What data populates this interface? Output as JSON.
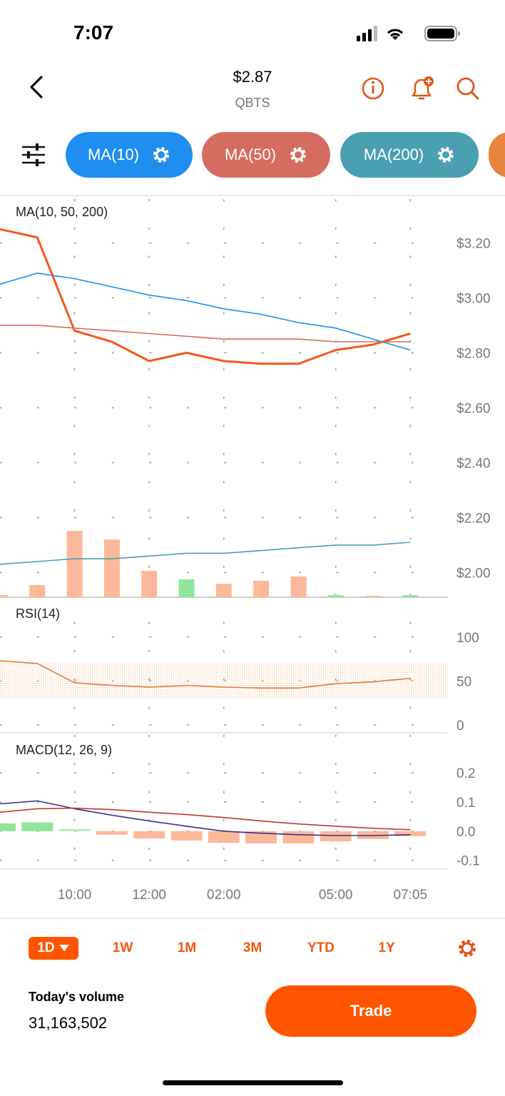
{
  "status_bar": {
    "time": "7:07"
  },
  "header": {
    "price": "$2.87",
    "symbol": "QBTS"
  },
  "time_axis": {
    "categories": [
      null,
      null,
      "10:00",
      null,
      "12:00",
      null,
      "02:00",
      null,
      null,
      "05:00",
      null,
      "07:05"
    ]
  },
  "chart_data": [
    {
      "type": "line",
      "title": "MA(10, 50, 200)",
      "ylim": [
        1.91,
        3.37
      ],
      "yticks": [
        {
          "value": 3.2,
          "label": "$3.20"
        },
        {
          "value": 3.0,
          "label": "$3.00"
        },
        {
          "value": 2.8,
          "label": "$2.80"
        },
        {
          "value": 2.6,
          "label": "$2.60"
        },
        {
          "value": 2.4,
          "label": "$2.40"
        },
        {
          "value": 2.2,
          "label": "$2.20"
        },
        {
          "value": 2.0,
          "label": "$2.00"
        }
      ],
      "grid": true,
      "series": [
        {
          "color": "#f4581c",
          "values": [
            3.25,
            3.22,
            2.88,
            2.84,
            2.77,
            2.8,
            2.77,
            2.76,
            2.76,
            2.81,
            2.83,
            2.87
          ]
        },
        {
          "name": "MA(10)",
          "color": "#1f8ef0",
          "values": [
            3.05,
            3.09,
            3.07,
            3.04,
            3.01,
            2.99,
            2.96,
            2.94,
            2.91,
            2.89,
            2.85,
            2.81
          ]
        },
        {
          "name": "MA(50)",
          "color": "#d56c60",
          "values": [
            2.9,
            2.9,
            2.89,
            2.88,
            2.87,
            2.86,
            2.85,
            2.85,
            2.85,
            2.84,
            2.84,
            2.84
          ]
        },
        {
          "name": "MA(200)",
          "color": "#4a9fb1",
          "values": [
            2.03,
            2.04,
            2.05,
            2.05,
            2.06,
            2.07,
            2.07,
            2.08,
            2.09,
            2.1,
            2.1,
            2.11
          ]
        }
      ],
      "volume": {
        "values": [
          3,
          17,
          93,
          81,
          37,
          25,
          19,
          23,
          29,
          3,
          2,
          3
        ],
        "colors": [
          "#fbb99a",
          "#fbb99a",
          "#fbb99a",
          "#fbb99a",
          "#fbb99a",
          "#93e49b",
          "#fbb99a",
          "#fbb99a",
          "#fbb99a",
          "#93e49b",
          "#fbb99a",
          "#93e49b"
        ]
      }
    },
    {
      "type": "line",
      "title": "RSI(14)",
      "ylim": [
        -9,
        143
      ],
      "yticks": [
        100,
        50,
        0
      ],
      "grid": true,
      "band": [
        30,
        70
      ],
      "band_color": "#f6c9a2",
      "series": [
        {
          "color": "#e07a3a",
          "values": [
            73,
            70,
            48,
            45,
            43,
            45,
            43,
            42,
            42,
            47,
            49,
            53
          ]
        }
      ]
    },
    {
      "type": "line",
      "title": "MACD(12, 26, 9)",
      "ylim": [
        -0.13,
        0.33
      ],
      "yticks": [
        0.2,
        0.1,
        {
          "value": 0,
          "label": "0.0"
        },
        -0.1
      ],
      "grid": true,
      "series": [
        {
          "color": "#3b2f8f",
          "values": [
            0.094,
            0.104,
            0.077,
            0.055,
            0.035,
            0.017,
            0,
            -0.007,
            -0.012,
            -0.015,
            -0.015,
            -0.012
          ]
        },
        {
          "color": "#c0392b",
          "values": [
            0.065,
            0.077,
            0.079,
            0.074,
            0.065,
            0.057,
            0.047,
            0.035,
            0.025,
            0.017,
            0.01,
            0.005
          ]
        }
      ],
      "histogram": {
        "values": [
          0.027,
          0.03,
          0.007,
          -0.012,
          -0.025,
          -0.032,
          -0.04,
          -0.042,
          -0.042,
          -0.035,
          -0.027,
          -0.017
        ],
        "colors": [
          "#93e49b",
          "#93e49b",
          "#b8eebd",
          "#fbb99a",
          "#fbb99a",
          "#fbb99a",
          "#fbb99a",
          "#fbb99a",
          "#fbb99a",
          "#fbb99a",
          "#fbb99a",
          "#fbb99a"
        ]
      }
    }
  ],
  "range_tabs": {
    "options": [
      "1D",
      "1W",
      "1M",
      "3M",
      "YTD",
      "1Y"
    ],
    "selected": 0
  },
  "volume_info": {
    "label": "Today's volume",
    "value": "31,163,502"
  },
  "trade_button": "Trade"
}
